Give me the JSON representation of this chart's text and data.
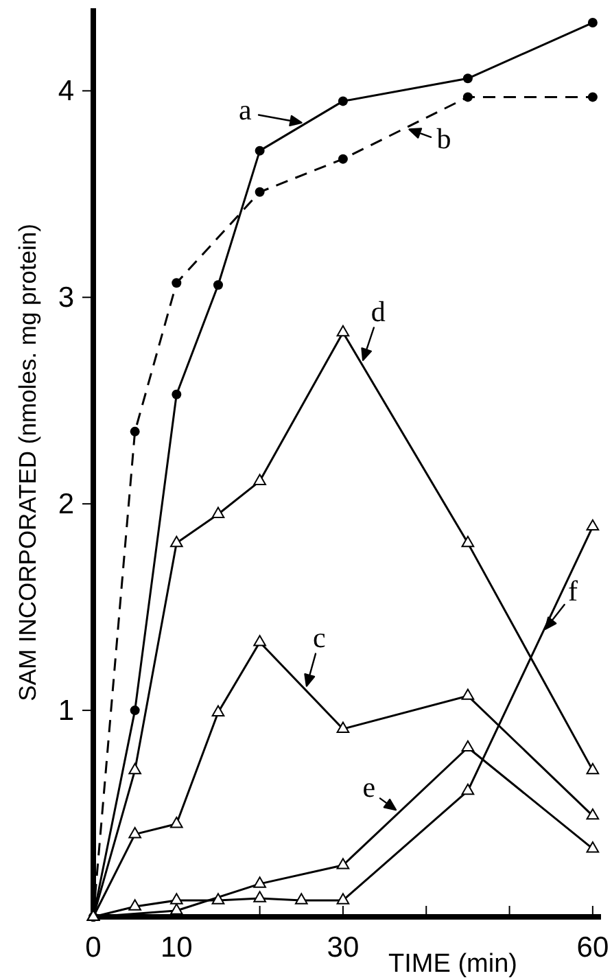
{
  "chart_data": {
    "type": "line",
    "xlabel": "TIME (min)",
    "ylabel": "SAM INCORPORATED (nmoles. mg protein)",
    "xlim": [
      0,
      61
    ],
    "ylim": [
      0,
      4.4
    ],
    "xticks": [
      0,
      10,
      {
        "value": 20,
        "label": null
      },
      30,
      {
        "value": 40,
        "label": null
      },
      {
        "value": 50,
        "label": null
      },
      60
    ],
    "yticks": [
      1,
      2,
      3,
      4
    ],
    "grid": false,
    "series": [
      {
        "color": "#000000",
        "marker": "circle",
        "line_style": "solid",
        "x": [
          0,
          5,
          10,
          15,
          20,
          30,
          45,
          60
        ],
        "values": [
          0,
          1.0,
          2.53,
          3.06,
          3.71,
          3.95,
          4.06,
          4.33
        ]
      },
      {
        "color": "#000000",
        "marker": "circle",
        "line_style": "dashed",
        "x": [
          0,
          5,
          10,
          20,
          30,
          45,
          60
        ],
        "values": [
          0,
          2.35,
          3.07,
          3.51,
          3.67,
          3.97,
          3.97
        ]
      },
      {
        "color": "#000000",
        "marker": "triangle",
        "line_style": "solid",
        "x": [
          0,
          5,
          10,
          15,
          20,
          30,
          45,
          60
        ],
        "values": [
          0,
          0.4,
          0.45,
          0.99,
          1.33,
          0.91,
          1.07,
          0.49
        ]
      },
      {
        "color": "#000000",
        "marker": "triangle",
        "line_style": "solid",
        "x": [
          0,
          5,
          10,
          15,
          20,
          30,
          45,
          60
        ],
        "values": [
          0,
          0.71,
          1.81,
          1.95,
          2.11,
          2.83,
          1.81,
          0.71
        ]
      },
      {
        "color": "#000000",
        "marker": "triangle",
        "line_style": "solid",
        "x": [
          0,
          10,
          20,
          30,
          45,
          60
        ],
        "values": [
          0,
          0.03,
          0.16,
          0.25,
          0.82,
          0.33
        ]
      },
      {
        "color": "#000000",
        "marker": "triangle",
        "line_style": "solid",
        "x": [
          0,
          5,
          10,
          15,
          20,
          25,
          30,
          45,
          60
        ],
        "values": [
          0,
          0.05,
          0.08,
          0.08,
          0.09,
          0.08,
          0.08,
          0.61,
          1.89
        ]
      }
    ],
    "annotations": [
      "a",
      "b",
      "c",
      "d",
      "e",
      "f"
    ]
  }
}
